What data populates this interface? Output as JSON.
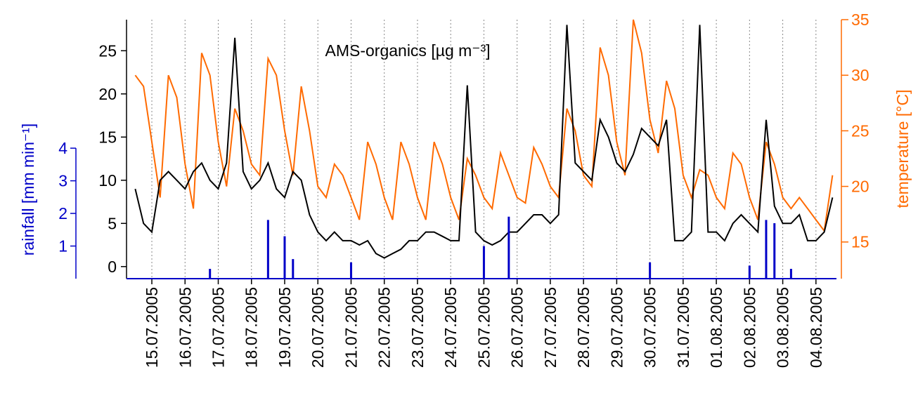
{
  "chart_data": {
    "type": "line",
    "annotation": "AMS-organics [µg m⁻³]",
    "y3label": "rainfall [mm min⁻¹]",
    "y2label": "temperature [°C]",
    "categories": [
      null,
      null,
      "15.07.2005",
      null,
      null,
      null,
      "16.07.2005",
      null,
      null,
      null,
      "17.07.2005",
      null,
      null,
      null,
      "18.07.2005",
      null,
      null,
      null,
      "19.07.2005",
      null,
      null,
      null,
      "20.07.2005",
      null,
      null,
      null,
      "21.07.2005",
      null,
      null,
      null,
      "22.07.2005",
      null,
      null,
      null,
      "23.07.2005",
      null,
      null,
      null,
      "24.07.2005",
      null,
      null,
      null,
      "25.07.2005",
      null,
      null,
      null,
      "26.07.2005",
      null,
      null,
      null,
      "27.07.2005",
      null,
      null,
      null,
      "28.07.2005",
      null,
      null,
      null,
      "29.07.2005",
      null,
      null,
      null,
      "30.07.2005",
      null,
      null,
      null,
      "31.07.2005",
      null,
      null,
      null,
      "01.08.2005",
      null,
      null,
      null,
      "02.08.2005",
      null,
      null,
      null,
      "03.08.2005",
      null,
      null,
      null,
      "04.08.2005",
      null,
      null
    ],
    "grid": true,
    "ylim": [
      -1.4,
      28.6
    ],
    "yticks": [
      0,
      5,
      10,
      15,
      20,
      25
    ],
    "y2lim": [
      11.7,
      35
    ],
    "y2ticks": [
      15,
      20,
      25,
      30,
      35
    ],
    "y2color": "#ff6a00",
    "y3lim": [
      0,
      7.94
    ],
    "y3ticks": [
      1,
      2,
      3,
      4
    ],
    "y3color": "#0000c8",
    "series": [
      {
        "color": "#ff6a00",
        "axis": "y2",
        "type": "line",
        "values": [
          30,
          29,
          24,
          19,
          30,
          28,
          22,
          18,
          32,
          30,
          24,
          20,
          27,
          25,
          22,
          21,
          31.5,
          30,
          25,
          21,
          29,
          25,
          20,
          19,
          22,
          21,
          19,
          17,
          24,
          22,
          19,
          17,
          24,
          22,
          19,
          17,
          24,
          22,
          19,
          17,
          22.5,
          21,
          19,
          18,
          23,
          21,
          19,
          18.5,
          23.5,
          22,
          20,
          19,
          27,
          25,
          21,
          20,
          32.5,
          30,
          24,
          21,
          35,
          32,
          26,
          23,
          29.5,
          27,
          21,
          19,
          21.5,
          21,
          19,
          18,
          23,
          22,
          19,
          17,
          24,
          22,
          19,
          18,
          19,
          18,
          17,
          16,
          21
        ]
      },
      {
        "color": "#000000",
        "type": "line",
        "values": [
          9,
          5,
          4,
          10,
          11,
          10,
          9,
          11,
          12,
          10,
          9,
          12,
          26.5,
          11,
          9,
          10,
          12,
          9,
          8,
          11,
          10,
          6,
          4,
          3,
          4,
          3,
          3,
          2.5,
          3,
          1.5,
          1,
          1.5,
          2,
          3,
          3,
          4,
          4,
          3.5,
          3,
          3,
          21,
          4,
          3,
          2.5,
          3,
          4,
          4,
          5,
          6,
          6,
          5,
          6,
          28,
          12,
          11,
          10,
          17,
          15,
          12,
          11,
          13,
          16,
          15,
          14,
          17,
          3,
          3,
          4,
          28,
          4,
          4,
          3,
          5,
          6,
          5,
          4,
          17,
          7,
          5,
          5,
          6,
          3,
          3,
          4,
          8
        ]
      },
      {
        "color": "#0000c8",
        "axis": "y3",
        "type": "bar",
        "values": [
          0,
          0,
          0,
          0,
          0,
          0,
          0,
          0,
          0,
          0.3,
          0,
          0,
          0,
          0,
          0,
          0,
          1.8,
          0,
          1.3,
          0.6,
          0,
          0,
          0,
          0,
          0,
          0,
          0.5,
          0,
          0,
          0,
          0,
          0,
          0,
          0,
          0,
          0,
          0,
          0,
          0,
          0,
          0,
          0,
          1.0,
          0,
          0,
          1.9,
          0,
          0,
          0,
          0,
          0,
          0,
          0,
          0,
          0,
          0,
          0,
          0,
          0,
          0,
          0,
          0,
          0.5,
          0,
          0,
          0,
          0,
          0,
          0,
          0,
          0,
          0,
          0,
          0,
          0.4,
          0,
          1.8,
          1.7,
          0,
          0.3,
          0,
          0,
          0,
          0,
          0
        ]
      }
    ]
  }
}
